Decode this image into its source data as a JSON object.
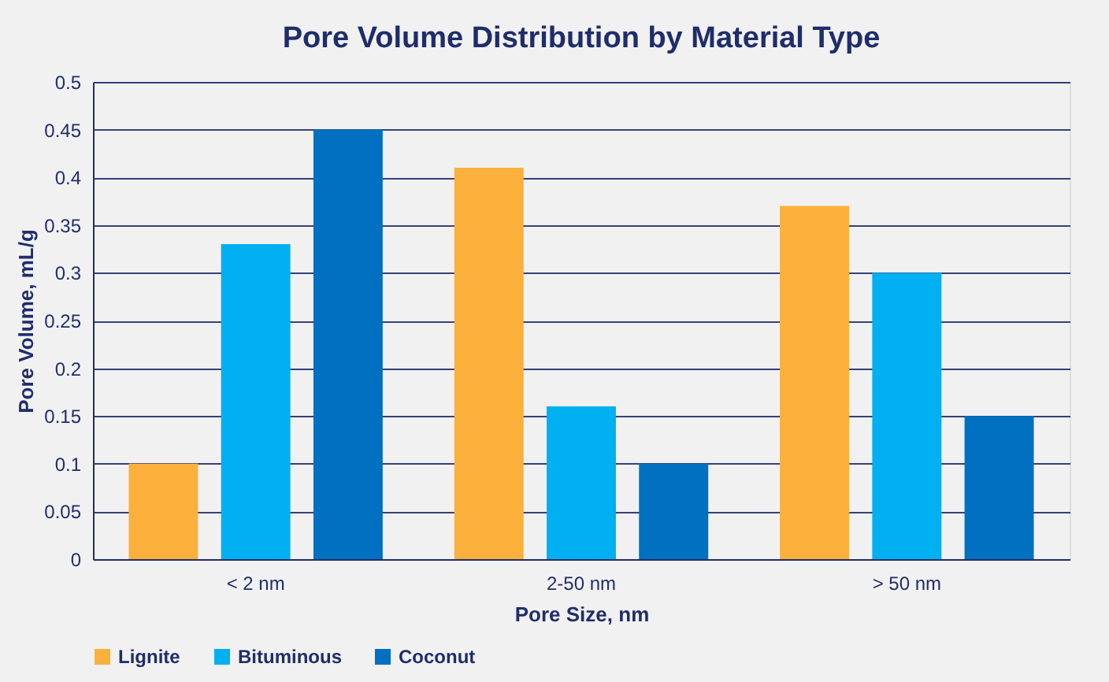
{
  "chart_data": {
    "type": "bar",
    "title": "Pore Volume Distribution by Material Type",
    "xlabel": "Pore Size, nm",
    "ylabel": "Pore Volume, mL/g",
    "categories": [
      "< 2 nm",
      "2-50 nm",
      "> 50 nm"
    ],
    "series": [
      {
        "name": "Lignite",
        "color": "#fbb03b",
        "values": [
          0.1,
          0.41,
          0.37
        ]
      },
      {
        "name": "Bituminous",
        "color": "#00b0f0",
        "values": [
          0.33,
          0.16,
          0.3
        ]
      },
      {
        "name": "Coconut",
        "color": "#0070c0",
        "values": [
          0.45,
          0.1,
          0.15
        ]
      }
    ],
    "ylim": [
      0,
      0.5
    ],
    "yticks": [
      0,
      0.05,
      0.1,
      0.15,
      0.2,
      0.25,
      0.3,
      0.35,
      0.4,
      0.45,
      0.5
    ],
    "grid": "y",
    "legend": "bottom"
  }
}
